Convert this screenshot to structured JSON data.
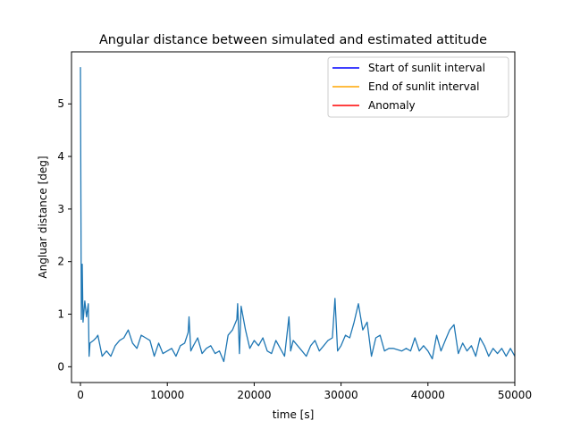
{
  "chart_data": {
    "type": "line",
    "title": "Angular distance between simulated and estimated attitude",
    "xlabel": "time [s]",
    "ylabel": "Angluar distance [deg]",
    "xlim": [
      -1030,
      50000
    ],
    "ylim": [
      -0.3,
      5.99
    ],
    "xticks": [
      "0",
      "10000",
      "20000",
      "30000",
      "40000",
      "50000"
    ],
    "xtick_values": [
      0,
      10000,
      20000,
      30000,
      40000,
      50000
    ],
    "yticks": [
      "0",
      "1",
      "2",
      "3",
      "4",
      "5"
    ],
    "ytick_values": [
      0,
      1,
      2,
      3,
      4,
      5
    ],
    "grid": false,
    "legend_position": "top-right",
    "legend": [
      {
        "label": "Start of sunlit interval",
        "color": "#0000ff"
      },
      {
        "label": "End of sunlit interval",
        "color": "#ffa500"
      },
      {
        "label": "Anomaly",
        "color": "#ff0000"
      }
    ],
    "series": [
      {
        "color": "#1f77b4",
        "x": [
          0,
          100,
          200,
          300,
          500,
          700,
          900,
          1000,
          1100,
          1500,
          1800,
          2000,
          2500,
          3000,
          3500,
          4000,
          4500,
          5000,
          5500,
          6000,
          6500,
          7000,
          7500,
          8000,
          8500,
          9000,
          9500,
          10000,
          10500,
          11000,
          11500,
          12000,
          12400,
          12500,
          12700,
          13000,
          13500,
          14000,
          14500,
          15000,
          15500,
          16000,
          16500,
          17000,
          17500,
          18000,
          18100,
          18300,
          18500,
          19000,
          19500,
          20000,
          20500,
          21000,
          21500,
          22000,
          22500,
          23000,
          23500,
          24000,
          24200,
          24500,
          25000,
          25500,
          26000,
          26500,
          27000,
          27500,
          28000,
          28500,
          29000,
          29300,
          29600,
          30000,
          30500,
          31000,
          31500,
          32000,
          32500,
          33000,
          33500,
          34000,
          34500,
          35000,
          35500,
          36000,
          37000,
          37500,
          38000,
          38500,
          39000,
          39500,
          40000,
          40500,
          41000,
          41500,
          42000,
          42500,
          43000,
          43500,
          44000,
          44500,
          45000,
          45500,
          46000,
          46500,
          47000,
          47500,
          48000,
          48500,
          49000,
          49500,
          50000
        ],
        "y": [
          5.7,
          0.9,
          1.95,
          0.85,
          1.25,
          0.95,
          1.2,
          0.2,
          0.45,
          0.5,
          0.55,
          0.6,
          0.2,
          0.3,
          0.2,
          0.4,
          0.5,
          0.55,
          0.7,
          0.45,
          0.35,
          0.6,
          0.55,
          0.5,
          0.2,
          0.45,
          0.25,
          0.3,
          0.35,
          0.2,
          0.4,
          0.45,
          0.65,
          0.95,
          0.3,
          0.4,
          0.55,
          0.25,
          0.35,
          0.4,
          0.25,
          0.3,
          0.1,
          0.6,
          0.7,
          0.9,
          1.2,
          0.25,
          1.15,
          0.7,
          0.35,
          0.5,
          0.4,
          0.55,
          0.3,
          0.25,
          0.5,
          0.35,
          0.2,
          0.95,
          0.3,
          0.5,
          0.4,
          0.3,
          0.2,
          0.4,
          0.5,
          0.3,
          0.4,
          0.5,
          0.55,
          1.3,
          0.3,
          0.4,
          0.6,
          0.55,
          0.85,
          1.2,
          0.7,
          0.85,
          0.2,
          0.55,
          0.6,
          0.3,
          0.35,
          0.35,
          0.3,
          0.35,
          0.3,
          0.55,
          0.3,
          0.4,
          0.3,
          0.15,
          0.6,
          0.3,
          0.5,
          0.7,
          0.8,
          0.25,
          0.45,
          0.3,
          0.4,
          0.2,
          0.55,
          0.4,
          0.2,
          0.35,
          0.25,
          0.35,
          0.2,
          0.35,
          0.2
        ]
      }
    ]
  }
}
